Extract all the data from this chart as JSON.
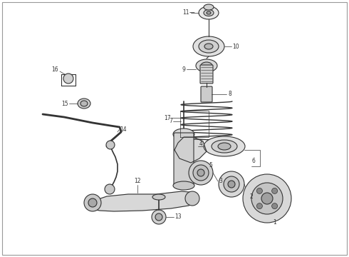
{
  "background_color": "#ffffff",
  "border_color": "#999999",
  "fig_width": 4.9,
  "fig_height": 3.6,
  "dpi": 100,
  "line_color": "#333333",
  "label_color": "#111111"
}
